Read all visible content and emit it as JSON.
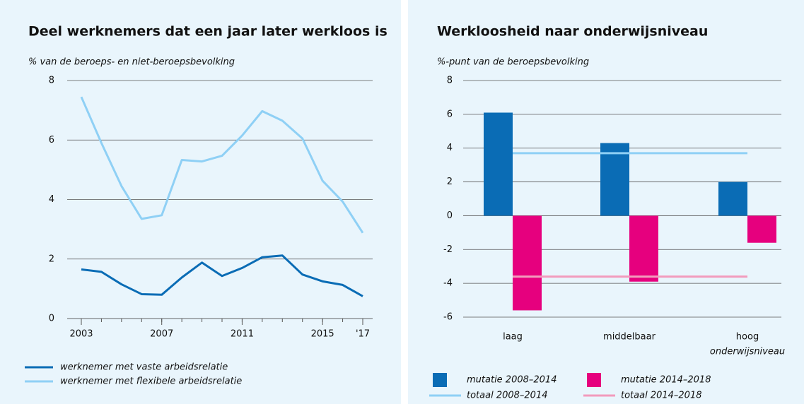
{
  "chart_data": [
    {
      "type": "line",
      "title": "Deel werknemers dat een jaar later werkloos is",
      "y_label": "% van de beroeps- en niet-beroepsbevolking",
      "x": [
        2003,
        2004,
        2005,
        2006,
        2007,
        2008,
        2009,
        2010,
        2011,
        2012,
        2013,
        2014,
        2015,
        2016,
        2017
      ],
      "series": [
        {
          "name": "werknemer met vaste arbeidsrelatie",
          "color": "#0a6cb5",
          "values": [
            1.65,
            1.57,
            1.15,
            0.82,
            0.8,
            1.38,
            1.88,
            1.43,
            1.7,
            2.06,
            2.12,
            1.48,
            1.25,
            1.13,
            0.75
          ]
        },
        {
          "name": "werknemer met flexibele arbeidsrelatie",
          "color": "#8fd0f5",
          "values": [
            7.45,
            5.9,
            4.45,
            3.35,
            3.47,
            5.33,
            5.28,
            5.47,
            6.15,
            6.97,
            6.65,
            6.05,
            4.63,
            3.93,
            2.88
          ]
        }
      ],
      "xlim": [
        2003,
        2017
      ],
      "xticks": [
        2003,
        2007,
        2011,
        2015,
        {
          "value": 2017,
          "label": "'17"
        }
      ],
      "ylim": [
        0,
        8
      ],
      "yticks": [
        0,
        2,
        4,
        6,
        8
      ],
      "grid": true
    },
    {
      "type": "bar",
      "title": "Werkloosheid naar onderwijsniveau",
      "y_label": "%-punt van de beroepsbevolking",
      "x_label": "onderwijsniveau",
      "categories": [
        "laag",
        "middelbaar",
        "hoog"
      ],
      "series": [
        {
          "name": "mutatie 2008–2014",
          "color": "#0a6cb5",
          "values": [
            6.1,
            4.3,
            2.0
          ]
        },
        {
          "name": "mutatie 2014–2018",
          "color": "#e6007e",
          "values": [
            -5.6,
            -3.9,
            -1.6
          ]
        }
      ],
      "lines": [
        {
          "name": "totaal 2008–2014",
          "color": "#8fd0f5",
          "value": 3.7
        },
        {
          "name": "totaal 2014–2018",
          "color": "#f29bbd",
          "value": -3.6
        }
      ],
      "ylim": [
        -6,
        8
      ],
      "yticks": [
        -6,
        -4,
        -2,
        0,
        2,
        4,
        6,
        8
      ],
      "grid": true
    }
  ]
}
